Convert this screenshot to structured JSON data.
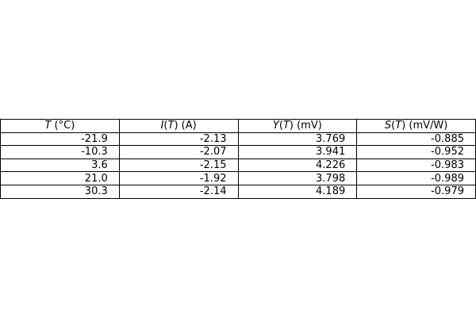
{
  "chart_data": {
    "type": "table",
    "columns": [
      {
        "var": "T",
        "rest": " (°C)"
      },
      {
        "var": "I",
        "mid": "(",
        "inner": "T",
        "rest": ") (A)"
      },
      {
        "var": "Y",
        "mid": "(",
        "inner": "T",
        "rest": ") (mV)"
      },
      {
        "var": "S",
        "mid": "(",
        "inner": "T",
        "rest": ") (mV/W)"
      }
    ],
    "rows": [
      [
        "-21.9",
        "-2.13",
        "3.769",
        "-0.885"
      ],
      [
        "-10.3",
        "-2.07",
        "3.941",
        "-0.952"
      ],
      [
        "3.6",
        "-2.15",
        "4.226",
        "-0.983"
      ],
      [
        "21.0",
        "-1.92",
        "3.798",
        "-0.989"
      ],
      [
        "30.3",
        "-2.14",
        "4.189",
        "-0.979"
      ]
    ]
  }
}
